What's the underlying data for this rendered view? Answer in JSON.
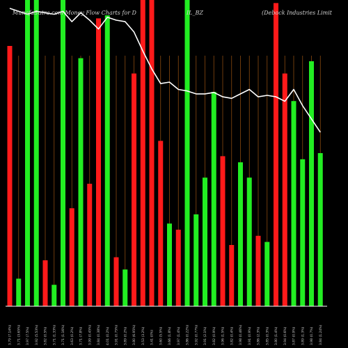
{
  "header": {
    "left": "MunafaSutra.com Money Flow Charts for D",
    "middle": "IL_BZ",
    "right": "(Debock Industries Limit"
  },
  "colors": {
    "background": "#000000",
    "up": "#22ee22",
    "down": "#ff1a1a",
    "price_line": "#ffffff",
    "grid": "#8a4a10",
    "axis": "#ffffff"
  },
  "chart_data": {
    "type": "bar",
    "y_range": [
      0,
      100
    ],
    "grid": "vertical lines at each bar",
    "categories": [
      "3.79 (7.14%)",
      "3.71 (3.65%)",
      "3.97 (7.5%)",
      "3.92 (5.53%)",
      "3.82 (0.5%)",
      "3.71 (1.33%)",
      "3.71 (1.16%)",
      "3.63 (0.2%)",
      "3.71 (7.8%)",
      "3.99 (0.45%)",
      "3.84 (0.38%)",
      "4.01 (0.2%)",
      "3.91 (0.75%)",
      "3.89 (0.2%)",
      "3.80 (6.95%)",
      "3.53 (3.2%)",
      "3.41 (0%)",
      "3.60 (5.5%)",
      "3.66 (1.8%)",
      "3.97 (1.4%)",
      "3.86 (0.22%)",
      "3.92 (0.77%)",
      "3.91 (2.1%)",
      "3.82 (0.9%)",
      "3.96 (1.5%)",
      "3.82 (0.4%)",
      "3.98 (0.46%)",
      "3.91 (0.9%)",
      "3.86 (2.3%)",
      "3.85 (0.3%)",
      "3.80 (1.4%)",
      "3.94 (0.6%)",
      "3.87 (0.9%)",
      "3.89 (1.3%)",
      "3.98 (0.7%)",
      "3.84 (1.24%)"
    ],
    "series": [
      {
        "values": [
          85,
          9,
          100,
          100,
          15,
          7,
          100,
          32,
          81,
          40,
          94,
          95,
          16,
          12,
          76,
          100,
          100,
          54,
          27,
          25,
          100,
          30,
          42,
          70,
          49,
          20,
          47,
          42,
          23,
          21,
          99,
          76,
          67,
          48,
          80,
          50
        ],
        "colors": [
          "down",
          "up",
          "up",
          "up",
          "down",
          "up",
          "up",
          "down",
          "up",
          "down",
          "down",
          "up",
          "down",
          "up",
          "down",
          "down",
          "down",
          "down",
          "up",
          "down",
          "up",
          "up",
          "up",
          "up",
          "down",
          "down",
          "up",
          "up",
          "down",
          "up",
          "down",
          "down",
          "up",
          "up",
          "up",
          "up"
        ]
      },
      {
        "values": [
          3.99,
          3.97,
          3.95,
          3.97,
          3.96,
          3.95,
          3.97,
          3.9,
          3.96,
          3.91,
          3.85,
          3.93,
          3.91,
          3.9,
          3.83,
          3.7,
          3.58,
          3.48,
          3.49,
          3.44,
          3.43,
          3.41,
          3.41,
          3.42,
          3.39,
          3.38,
          3.41,
          3.44,
          3.39,
          3.4,
          3.39,
          3.36,
          3.44,
          3.33,
          3.24,
          3.15
        ]
      }
    ]
  }
}
